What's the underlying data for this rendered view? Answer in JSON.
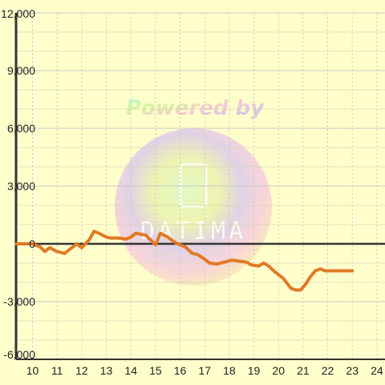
{
  "chart_data": {
    "type": "line",
    "title": "",
    "xlabel": "",
    "ylabel": "",
    "xlim": [
      9.33,
      24.33
    ],
    "ylim": [
      -6000,
      12000
    ],
    "x_ticks": [
      "10",
      "11",
      "12",
      "13",
      "14",
      "15",
      "16",
      "17",
      "18",
      "19",
      "20",
      "21",
      "22",
      "23",
      "24"
    ],
    "y_ticks": [
      "12,000",
      "9,000",
      "6,000",
      "3,000",
      "0",
      "-3,000",
      "-6,000"
    ],
    "y_tick_values": [
      12000,
      9000,
      6000,
      3000,
      0,
      -3000,
      -6000
    ],
    "grid": true,
    "legend": "none",
    "series": [
      {
        "color": "#e07a26",
        "x": [
          9.35,
          10.0,
          10.3,
          10.5,
          10.7,
          11.0,
          11.3,
          11.6,
          11.8,
          12.0,
          12.3,
          12.5,
          12.7,
          13.0,
          13.2,
          13.5,
          13.8,
          14.0,
          14.2,
          14.4,
          14.6,
          14.8,
          15.0,
          15.2,
          15.5,
          15.7,
          15.9,
          16.2,
          16.5,
          16.7,
          17.0,
          17.2,
          17.5,
          17.8,
          18.1,
          18.4,
          18.7,
          18.9,
          19.2,
          19.4,
          19.6,
          19.8,
          20.0,
          20.2,
          20.5,
          20.7,
          20.9,
          21.1,
          21.3,
          21.5,
          21.7,
          21.9,
          22.3,
          22.7,
          23.0
        ],
        "y": [
          0,
          0,
          -150,
          -400,
          -200,
          -400,
          -500,
          -200,
          0,
          -200,
          200,
          650,
          550,
          350,
          300,
          300,
          250,
          350,
          550,
          500,
          450,
          200,
          -50,
          550,
          350,
          150,
          0,
          -150,
          -500,
          -550,
          -800,
          -1000,
          -1050,
          -950,
          -850,
          -900,
          -950,
          -1100,
          -1150,
          -1000,
          -1150,
          -1400,
          -1600,
          -1800,
          -2300,
          -2400,
          -2400,
          -2100,
          -1700,
          -1400,
          -1300,
          -1400,
          -1400,
          -1400,
          -1400
        ]
      }
    ]
  },
  "watermark": {
    "line1": "Powered by",
    "line2": "DATIMA"
  },
  "colors": {
    "background": "#ffffcc",
    "grid_major": "#c8c8c8",
    "grid_minor": "#d6d6b8",
    "axis": "#333333",
    "series": "#e07a26"
  }
}
